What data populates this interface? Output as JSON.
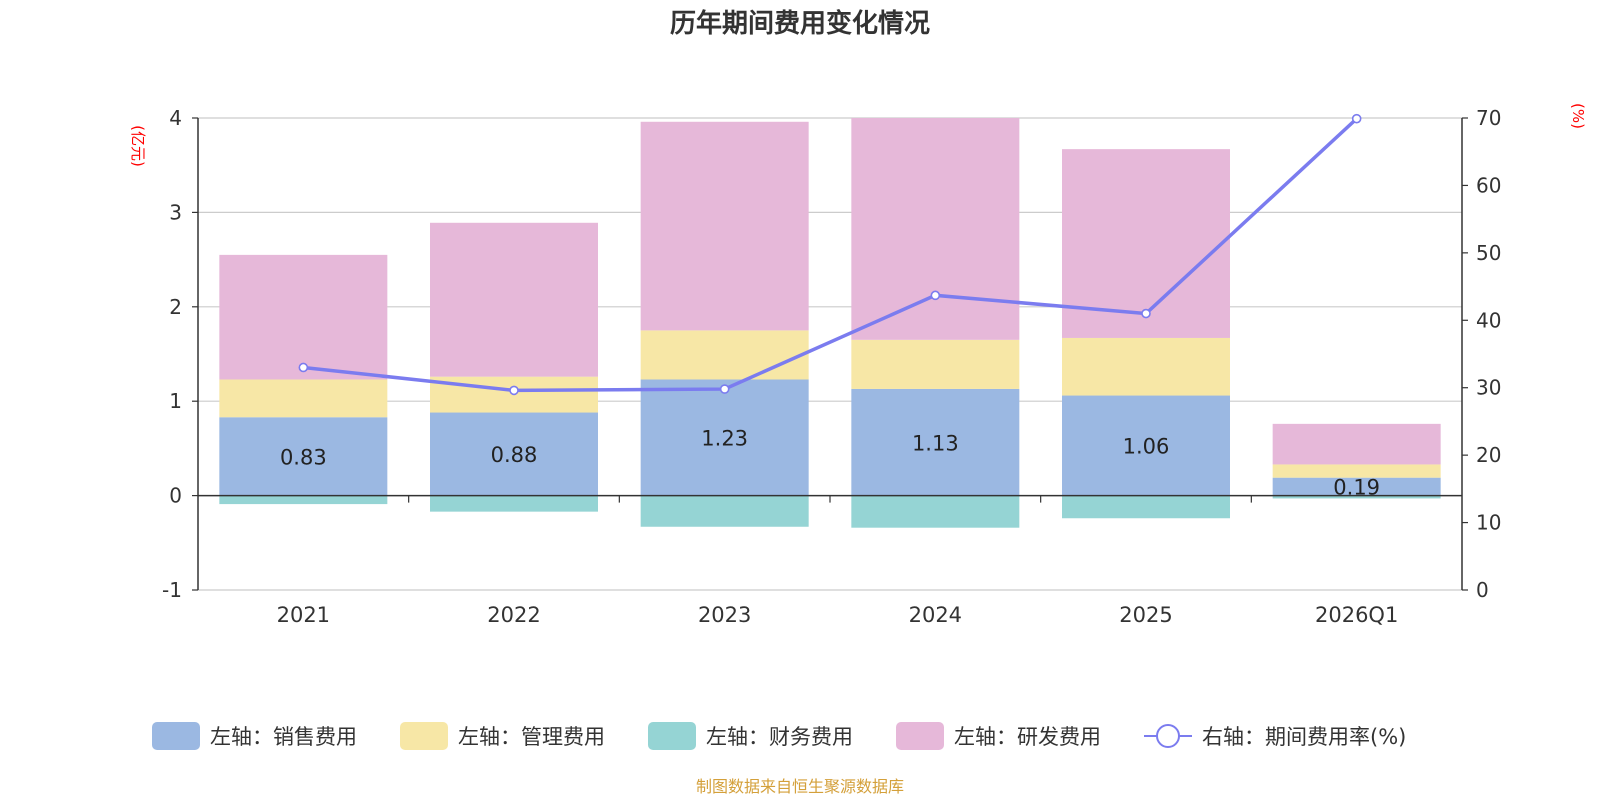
{
  "colors": {
    "sales": "#9bb8e2",
    "admin": "#f7e7a6",
    "finance": "#95d4d4",
    "rd": "#e6b8d9",
    "line": "#7b7cef",
    "unit": "#ff0000",
    "source": "#d4a03a"
  },
  "chart_data": {
    "type": "bar",
    "title": "历年期间费用变化情况",
    "categories": [
      "2021",
      "2022",
      "2023",
      "2024",
      "2025",
      "2026Q1"
    ],
    "left_axis": {
      "unit": "(亿元)",
      "min": -1,
      "max": 4,
      "ticks": [
        "-1",
        "0",
        "1",
        "2",
        "3",
        "4"
      ]
    },
    "right_axis": {
      "unit": "(%)",
      "min": 0,
      "max": 70,
      "ticks": [
        "0",
        "10",
        "20",
        "30",
        "40",
        "50",
        "60",
        "70"
      ]
    },
    "series": [
      {
        "key": "sales",
        "name": "左轴：销售费用",
        "axis": "left",
        "type": "bar",
        "stack": true,
        "values": [
          0.83,
          0.88,
          1.23,
          1.13,
          1.06,
          0.19
        ],
        "labels": [
          "0.83",
          "0.88",
          "1.23",
          "1.13",
          "1.06",
          "0.19"
        ]
      },
      {
        "key": "admin",
        "name": "左轴：管理费用",
        "axis": "left",
        "type": "bar",
        "stack": true,
        "values": [
          0.4,
          0.38,
          0.52,
          0.52,
          0.61,
          0.14
        ]
      },
      {
        "key": "finance",
        "name": "左轴：财务费用",
        "axis": "left",
        "type": "bar",
        "stack": true,
        "values": [
          -0.09,
          -0.17,
          -0.33,
          -0.34,
          -0.24,
          -0.03
        ]
      },
      {
        "key": "rd",
        "name": "左轴：研发费用",
        "axis": "left",
        "type": "bar",
        "stack": true,
        "values": [
          1.32,
          1.63,
          2.21,
          2.35,
          2.0,
          0.43
        ]
      },
      {
        "key": "line",
        "name": "右轴：期间费用率(%)",
        "axis": "right",
        "type": "line",
        "values": [
          33.0,
          29.6,
          29.8,
          43.7,
          41.0,
          69.9
        ]
      }
    ]
  },
  "source_text": "制图数据来自恒生聚源数据库"
}
